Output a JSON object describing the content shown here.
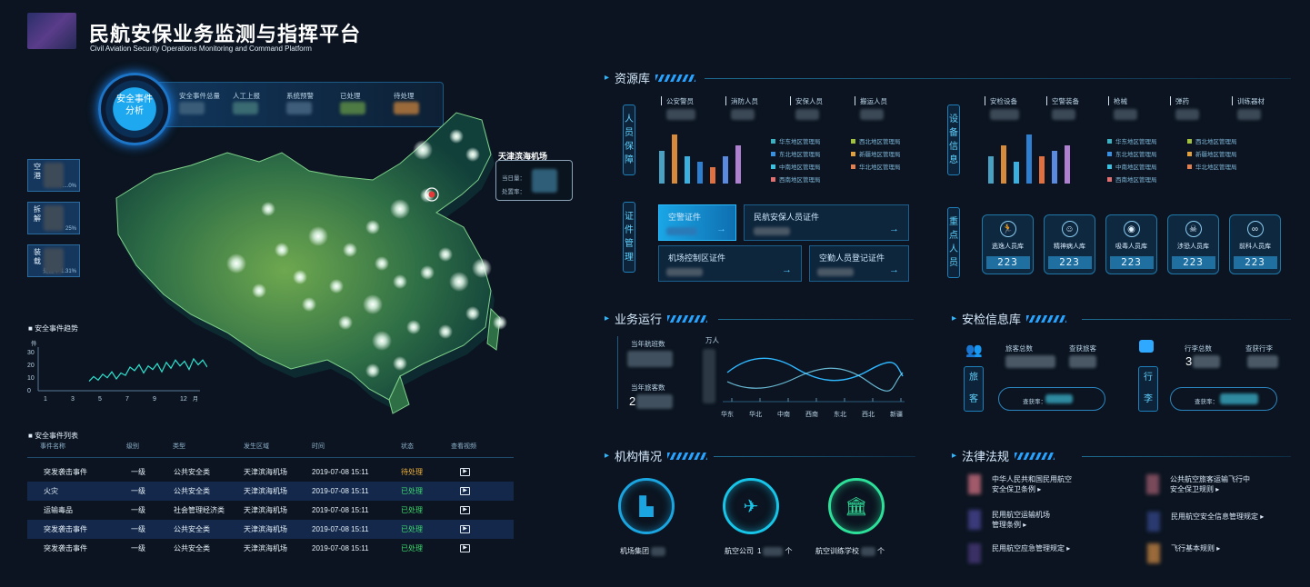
{
  "header": {
    "title": "民航安保业务监测与指挥平台",
    "subtitle": "Civil Aviation Security Operations Monitoring and Command Platform"
  },
  "analysis": {
    "badge": "安全事件\n分析",
    "stats": [
      "安全事件总量",
      "人工上报",
      "系统预警",
      "已处理",
      "待处理"
    ],
    "stat_colors": [
      "#3a5c78",
      "#3a6a72",
      "#3e5d7a",
      "#4e7a44",
      "#9a6a3a"
    ]
  },
  "side_stats": [
    {
      "label": "空\n港",
      "note": "....0%"
    },
    {
      "label": "拆\n解",
      "note": "25%"
    },
    {
      "label": "装\n载",
      "note": "处置率 1.31%"
    }
  ],
  "map": {
    "airport": "天津滨海机场",
    "line1": "当日量：",
    "line2": "处置率："
  },
  "trend": {
    "title": "安全事件趋势",
    "unit": "件",
    "yticks": [
      "30",
      "20",
      "10",
      "0"
    ],
    "xticks": [
      "1",
      "3",
      "5",
      "7",
      "9",
      "12"
    ],
    "xunit": "月",
    "values": [
      8,
      12,
      9,
      14,
      11,
      16,
      10,
      15,
      13,
      20,
      17,
      22,
      15,
      21,
      18,
      23,
      16,
      24,
      19,
      26,
      21,
      25,
      18,
      27,
      22,
      26,
      20
    ]
  },
  "event_list": {
    "title": "安全事件列表",
    "headers": [
      "事件名称",
      "级别",
      "类型",
      "发生区域",
      "时间",
      "状态",
      "查看视频"
    ],
    "rows": [
      [
        "突发袭击事件",
        "一级",
        "公共安全类",
        "天津滨海机场",
        "2019-07-08 15:11",
        "待处理"
      ],
      [
        "火灾",
        "一级",
        "公共安全类",
        "天津滨海机场",
        "2019-07-08 15:11",
        "已处理"
      ],
      [
        "运输毒品",
        "一级",
        "社会管理经济类",
        "天津滨海机场",
        "2019-07-08 15:11",
        "已处理"
      ],
      [
        "突发袭击事件",
        "一级",
        "公共安全类",
        "天津滨海机场",
        "2019-07-08 15:11",
        "已处理"
      ],
      [
        "突发袭击事件",
        "一级",
        "公共安全类",
        "天津滨海机场",
        "2019-07-08 15:11",
        "已处理"
      ]
    ],
    "status_colors": {
      "待处理": "#f2b23a",
      "已处理": "#3ddc6e"
    }
  },
  "resource": {
    "title": "资源库",
    "personnel": {
      "label": "人员保障",
      "cats": [
        "公安警员",
        "消防人员",
        "安保人员",
        "搬运人员"
      ]
    },
    "equipment": {
      "label": "设备信息",
      "cats": [
        "安检设备",
        "空警装备",
        "枪械",
        "弹药",
        "训练器材"
      ]
    },
    "bar_values_left": [
      6,
      9,
      5,
      4,
      3,
      5,
      7
    ],
    "bar_values_right": [
      5,
      7,
      4,
      9,
      5,
      6,
      7
    ],
    "bar_colors": [
      "#4aa0c0",
      "#d68a3a",
      "#3ab0e0",
      "#2f7fd0",
      "#e07040",
      "#5a8ae0",
      "#b080d0"
    ],
    "legend": [
      "华东地区管理局",
      "西北地区管理局",
      "东北地区管理局",
      "新疆地区管理局",
      "中南地区管理局",
      "华北地区管理局",
      "西南地区管理局"
    ],
    "legend_colors": [
      "#3ab0c0",
      "#a0c040",
      "#3a90e0",
      "#e0a040",
      "#3ac0e0",
      "#e08050",
      "#e07070"
    ],
    "certs": {
      "label": "证件管理",
      "items": [
        "空警证件",
        "民航安保人员证件",
        "机场控制区证件",
        "空勤人员登记证件"
      ]
    },
    "key_people": {
      "label": "重点人员",
      "items": [
        "逃逸人员库",
        "精神病人库",
        "吸毒人员库",
        "涉恐人员库",
        "前科人员库"
      ],
      "icons": [
        "🏃",
        "☺",
        "◉",
        "☠",
        "∞"
      ],
      "value": "223"
    }
  },
  "ops": {
    "title": "业务运行",
    "flights_label": "当年航班数",
    "pax_label": "当年旅客数",
    "pax_prefix": "2",
    "unit": "万人",
    "regions": [
      "华东",
      "华北",
      "中南",
      "西南",
      "东北",
      "西北",
      "新疆"
    ]
  },
  "security_info": {
    "title": "安检信息库",
    "pax_v": "旅\n客",
    "pax_total": "旅客总数",
    "pax_found": "查获旅客",
    "pax_rate": "查获率：",
    "bag_v": "行\n李",
    "bag_total": "行李总数",
    "bag_found": "查获行李",
    "bag_prefix": "3",
    "bag_rate": "查获率："
  },
  "org": {
    "title": "机构情况",
    "items": [
      {
        "label": "机场集团",
        "suffix": ""
      },
      {
        "label": "航空公司",
        "prefix": "1",
        "suffix": "个"
      },
      {
        "label": "航空训练学校",
        "suffix": "个"
      }
    ],
    "colors": [
      "#1aa5e0",
      "#17c5e8",
      "#2de09a"
    ]
  },
  "law": {
    "title": "法律法规",
    "items": [
      "中华人民共和国民用航空\n安全保卫条例 ▸",
      "公共航空旅客运输飞行中\n安全保卫规则 ▸",
      "民用航空运输机场\n管理条例 ▸",
      "民用航空安全信息管理规定 ▸",
      "民用航空应急管理规定 ▸",
      "飞行基本规则 ▸"
    ],
    "colors": [
      "#a05a6a",
      "#7a4a5a",
      "#3a3a7a",
      "#2a3a70",
      "#3a3066",
      "#9a6a3a"
    ]
  }
}
